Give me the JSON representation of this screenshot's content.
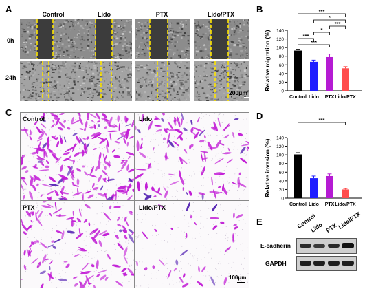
{
  "panels": {
    "A": "A",
    "B": "B",
    "C": "C",
    "D": "D",
    "E": "E"
  },
  "panel_a": {
    "column_labels": [
      "Control",
      "Lido",
      "PTX",
      "Lido/PTX"
    ],
    "row_labels": [
      "0h",
      "24h"
    ],
    "scale_bar": "200μm"
  },
  "panel_c": {
    "labels": [
      "Control",
      "Lido",
      "PTX",
      "Lido/PTX"
    ],
    "scale_bar": "100μm"
  },
  "panel_e": {
    "lane_labels": [
      "Control",
      "Lido",
      "PTX",
      "Lido/PTX"
    ],
    "row_labels": [
      "E-cadherin",
      "GAPDH"
    ]
  },
  "colors": {
    "control": "#000000",
    "lido": "#1f1fff",
    "ptx": "#b51bd3",
    "lido_ptx": "#ff4d4d"
  },
  "chart_data": [
    {
      "type": "bar",
      "categories": [
        "Control",
        "Lido",
        "PTX",
        "Lido/PTX"
      ],
      "values": [
        93,
        67,
        78,
        52
      ],
      "errors": [
        3,
        4,
        7,
        4
      ],
      "ylabel": "Relative migration (%)",
      "ylim": [
        0,
        140
      ],
      "yticks": [
        0,
        20,
        40,
        60,
        80,
        100,
        120,
        140
      ],
      "significance": [
        "***",
        "*",
        "***",
        "***",
        "*",
        "***"
      ]
    },
    {
      "type": "bar",
      "categories": [
        "Control",
        "Lido",
        "PTX",
        "Lido/PTX"
      ],
      "values": [
        101,
        46,
        51,
        20
      ],
      "errors": [
        4,
        5,
        5,
        2
      ],
      "ylabel": "Relative invasion (%)",
      "ylim": [
        0,
        140
      ],
      "yticks": [
        0,
        20,
        40,
        60,
        80,
        100,
        120,
        140
      ],
      "significance": [
        "***"
      ]
    }
  ]
}
